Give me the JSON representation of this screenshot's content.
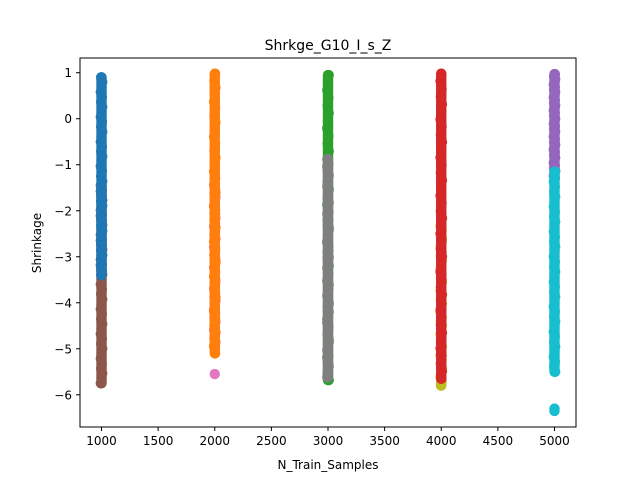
{
  "chart_data": {
    "type": "scatter",
    "title": "Shrkge_G10_I_s_Z",
    "xlabel": "N_Train_Samples",
    "ylabel": "Shrinkage",
    "xlim": [
      810,
      5190
    ],
    "ylim": [
      -6.7,
      1.32
    ],
    "xticks": [
      1000,
      1500,
      2000,
      2500,
      3000,
      3500,
      4000,
      4500,
      5000
    ],
    "yticks": [
      1,
      0,
      -1,
      -2,
      -3,
      -4,
      -5,
      -6
    ],
    "grid": false,
    "legend": "none",
    "series": [
      {
        "x": 1000,
        "color": "#8c564b",
        "ymin": -5.75,
        "ymax": -1.45,
        "extra": []
      },
      {
        "x": 1000,
        "color": "#1f77b4",
        "ymin": -3.4,
        "ymax": 0.9,
        "extra": []
      },
      {
        "x": 2000,
        "color": "#e377c2",
        "ymin": -4.95,
        "ymax": -1.35,
        "extra": [
          -5.55
        ]
      },
      {
        "x": 2000,
        "color": "#ff7f0e",
        "ymin": -5.1,
        "ymax": 0.98,
        "extra": []
      },
      {
        "x": 3000,
        "color": "#2ca02c",
        "ymin": -5.68,
        "ymax": 0.95,
        "extra": []
      },
      {
        "x": 3000,
        "color": "#7f7f7f",
        "ymin": -5.62,
        "ymax": -0.88,
        "extra": []
      },
      {
        "x": 4000,
        "color": "#bcbd22",
        "ymin": -5.8,
        "ymax": -2.05,
        "extra": []
      },
      {
        "x": 4000,
        "color": "#d62728",
        "ymin": -5.65,
        "ymax": 0.98,
        "extra": []
      },
      {
        "x": 5000,
        "color": "#9467bd",
        "ymin": -1.3,
        "ymax": 0.97,
        "extra": []
      },
      {
        "x": 5000,
        "color": "#17becf",
        "ymin": -5.5,
        "ymax": -1.15,
        "extra": [
          -6.3,
          -6.35
        ]
      }
    ]
  }
}
